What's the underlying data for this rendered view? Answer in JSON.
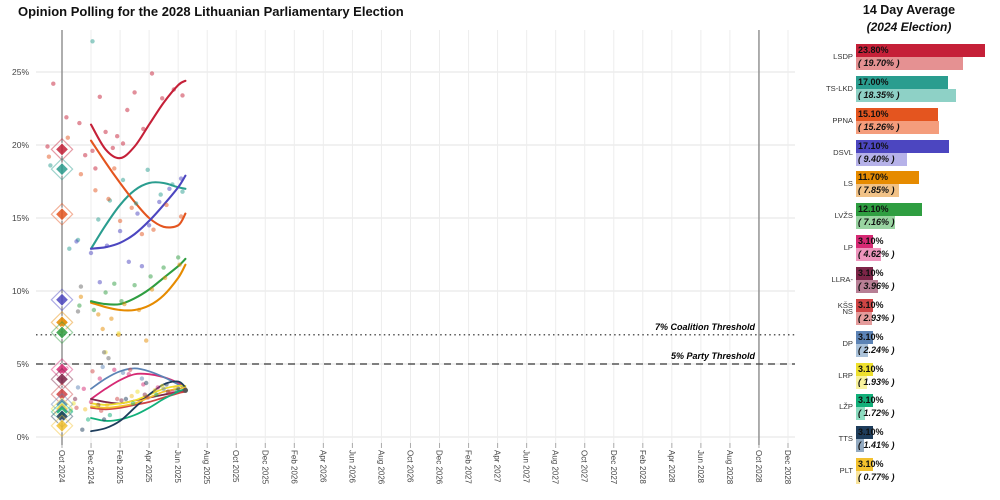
{
  "header": {
    "title": "Opinion Polling for the 2028 Lithuanian Parliamentary Election"
  },
  "side_panel": {
    "title": "14 Day Average",
    "subtitle": "(2024 Election)"
  },
  "chart_data": [
    {
      "type": "scatter",
      "title": "Opinion Polling for the 2028 Lithuanian Parliamentary Election",
      "xlabel": "",
      "ylabel": "",
      "x_tick_labels": [
        "Oct 2024",
        "Dec 2024",
        "Feb 2025",
        "Apr 2025",
        "Jun 2025",
        "Aug 2025",
        "Oct 2025",
        "Dec 2025",
        "Feb 2026",
        "Apr 2026",
        "Jun 2026",
        "Aug 2026",
        "Oct 2026",
        "Dec 2026",
        "Feb 2027",
        "Apr 2027",
        "Jun 2027",
        "Aug 2027",
        "Oct 2027",
        "Dec 2027",
        "Feb 2028",
        "Apr 2028",
        "Jun 2028",
        "Aug 2028",
        "Oct 2028",
        "Dec 2028"
      ],
      "y_tick_labels": [
        "0%",
        "5%",
        "10%",
        "15%",
        "20%",
        "25%"
      ],
      "ylim": [
        0,
        27.9
      ],
      "grid": true,
      "election_date_lines_months": [
        0,
        48
      ],
      "thresholds": [
        {
          "label": "7% Coalition Threshold",
          "value": 7,
          "style": "dotted"
        },
        {
          "label": "5% Party Threshold",
          "value": 5,
          "style": "dashed"
        }
      ],
      "trend_months": [
        2,
        3,
        4,
        5,
        6,
        7,
        8,
        8.5
      ],
      "series": [
        {
          "name": "LSDP",
          "color": "#c52038",
          "light": "#e59192",
          "election_2024": 19.7,
          "avg_14day": 23.8,
          "trend": [
            21.4,
            19.7,
            19.1,
            19.9,
            21.4,
            22.9,
            24.1,
            24.4
          ],
          "points": [
            [
              -1.0,
              19.9
            ],
            [
              -0.6,
              24.2
            ],
            [
              0.3,
              21.9
            ],
            [
              1.2,
              21.5
            ],
            [
              1.6,
              19.3
            ],
            [
              2.1,
              19.6
            ],
            [
              2.3,
              18.4
            ],
            [
              2.6,
              23.3
            ],
            [
              3.0,
              20.9
            ],
            [
              3.5,
              19.8
            ],
            [
              3.8,
              20.6
            ],
            [
              4.2,
              20.1
            ],
            [
              4.5,
              22.4
            ],
            [
              5.0,
              23.6
            ],
            [
              5.6,
              21.1
            ],
            [
              6.2,
              24.9
            ],
            [
              6.9,
              23.2
            ],
            [
              7.7,
              23.8
            ],
            [
              8.3,
              23.4
            ]
          ]
        },
        {
          "name": "TS-LKD",
          "color": "#2a9d8f",
          "light": "#8ed1c6",
          "election_2024": 18.35,
          "avg_14day": 17.0,
          "trend": [
            12.9,
            14.5,
            15.9,
            16.9,
            17.4,
            17.4,
            17.1,
            17.0
          ],
          "points": [
            [
              -0.8,
              18.6
            ],
            [
              0.5,
              12.9
            ],
            [
              1.1,
              13.5
            ],
            [
              2.1,
              27.1
            ],
            [
              2.5,
              14.9
            ],
            [
              3.3,
              16.2
            ],
            [
              4.2,
              17.6
            ],
            [
              5.1,
              16.0
            ],
            [
              5.9,
              18.3
            ],
            [
              6.8,
              16.6
            ],
            [
              7.6,
              17.3
            ],
            [
              8.3,
              16.8
            ]
          ]
        },
        {
          "name": "PPNA",
          "color": "#e4551f",
          "light": "#f49d7c",
          "election_2024": 15.26,
          "avg_14day": 15.1,
          "trend": [
            20.3,
            18.8,
            17.4,
            16.1,
            15.0,
            14.4,
            14.5,
            15.3
          ],
          "points": [
            [
              -0.9,
              19.2
            ],
            [
              0.4,
              20.5
            ],
            [
              1.3,
              18.0
            ],
            [
              2.3,
              16.9
            ],
            [
              3.2,
              16.3
            ],
            [
              3.6,
              18.4
            ],
            [
              4.0,
              14.8
            ],
            [
              4.8,
              15.7
            ],
            [
              5.5,
              13.9
            ],
            [
              6.3,
              14.2
            ],
            [
              7.2,
              15.9
            ],
            [
              8.2,
              15.1
            ]
          ]
        },
        {
          "name": "DSVL",
          "color": "#4c46c0",
          "light": "#b6b2e9",
          "election_2024": 9.4,
          "avg_14day": 17.1,
          "trend": [
            12.9,
            13.0,
            13.3,
            13.9,
            14.8,
            15.9,
            17.1,
            17.9
          ],
          "points": [
            [
              1.0,
              13.4
            ],
            [
              2.0,
              12.6
            ],
            [
              2.6,
              10.6
            ],
            [
              3.1,
              13.1
            ],
            [
              4.0,
              14.1
            ],
            [
              4.6,
              12.0
            ],
            [
              5.2,
              15.3
            ],
            [
              5.5,
              11.7
            ],
            [
              6.0,
              14.5
            ],
            [
              6.7,
              16.1
            ],
            [
              7.4,
              17.0
            ],
            [
              8.2,
              17.7
            ]
          ]
        },
        {
          "name": "LS",
          "color": "#e68b00",
          "light": "#f1c287",
          "election_2024": 7.85,
          "avg_14day": 11.7,
          "trend": [
            9.2,
            8.9,
            8.7,
            8.7,
            9.0,
            9.7,
            10.9,
            11.8
          ],
          "points": [
            [
              0.2,
              7.9
            ],
            [
              1.3,
              9.6
            ],
            [
              2.5,
              8.4
            ],
            [
              2.8,
              7.4
            ],
            [
              3.4,
              8.1
            ],
            [
              3.9,
              7.0
            ],
            [
              4.3,
              9.1
            ],
            [
              5.3,
              8.7
            ],
            [
              5.8,
              6.6
            ],
            [
              6.2,
              10.1
            ],
            [
              7.1,
              10.9
            ],
            [
              8.1,
              11.8
            ]
          ]
        },
        {
          "name": "LVŽS",
          "color": "#2f9e41",
          "light": "#99d4a1",
          "election_2024": 7.16,
          "avg_14day": 12.1,
          "trend": [
            9.3,
            9.1,
            9.1,
            9.5,
            10.1,
            10.9,
            11.7,
            12.2
          ],
          "points": [
            [
              1.2,
              9.0
            ],
            [
              2.2,
              8.7
            ],
            [
              3.0,
              9.9
            ],
            [
              3.6,
              10.5
            ],
            [
              4.1,
              9.3
            ],
            [
              5.0,
              10.4
            ],
            [
              6.1,
              11.0
            ],
            [
              7.0,
              11.6
            ],
            [
              8.0,
              12.3
            ]
          ]
        },
        {
          "name": "LP",
          "color": "#d62a74",
          "light": "#ee95bd",
          "election_2024": 4.62,
          "avg_14day": 3.1,
          "trend": [
            2.6,
            3.3,
            3.9,
            4.3,
            4.3,
            4.1,
            3.7,
            3.3
          ],
          "points": [
            [
              0.3,
              4.7
            ],
            [
              1.5,
              3.3
            ],
            [
              2.0,
              2.4
            ],
            [
              2.6,
              4.0
            ],
            [
              3.6,
              4.6
            ],
            [
              4.6,
              4.3
            ],
            [
              5.6,
              3.6
            ],
            [
              6.6,
              3.4
            ],
            [
              7.6,
              3.1
            ]
          ]
        },
        {
          "name": "LLRA-KŠS",
          "color": "#7d2548",
          "light": "#b77f95",
          "election_2024": 3.96,
          "avg_14day": 3.1,
          "trend": [
            2.6,
            2.4,
            2.3,
            2.5,
            2.7,
            2.9,
            3.1,
            3.2
          ],
          "points": [
            [
              0.9,
              2.6
            ],
            [
              2.5,
              2.2
            ],
            [
              4.1,
              2.5
            ],
            [
              5.7,
              2.9
            ],
            [
              7.3,
              3.1
            ]
          ]
        },
        {
          "name": "NS",
          "color": "#cf4444",
          "light": "#e49b9b",
          "election_2024": 2.93,
          "avg_14day": 3.1,
          "trend": [
            2.0,
            1.9,
            2.0,
            2.2,
            2.4,
            2.7,
            3.0,
            3.1
          ],
          "points": [
            [
              1.0,
              2.0
            ],
            [
              2.1,
              4.5
            ],
            [
              2.7,
              1.8
            ],
            [
              3.8,
              2.6
            ],
            [
              4.7,
              4.6
            ],
            [
              5.9,
              2.7
            ],
            [
              7.4,
              3.0
            ]
          ]
        },
        {
          "name": "DP",
          "color": "#5c83b5",
          "light": "#aac2da",
          "election_2024": 2.24,
          "avg_14day": 3.1,
          "trend": [
            3.3,
            4.0,
            4.5,
            4.7,
            4.5,
            4.1,
            3.6,
            3.3
          ],
          "points": [
            [
              1.1,
              3.4
            ],
            [
              2.8,
              4.8
            ],
            [
              4.2,
              4.4
            ],
            [
              5.5,
              4.0
            ],
            [
              7.0,
              3.3
            ]
          ]
        },
        {
          "name": "LRP",
          "color": "#eee02e",
          "light": "#f8f29c",
          "election_2024": 1.93,
          "avg_14day": 3.1,
          "trend": [
            2.3,
            2.2,
            2.3,
            2.5,
            2.9,
            3.3,
            3.5,
            3.5
          ],
          "points": [
            [
              0.8,
              2.3
            ],
            [
              2.4,
              2.1
            ],
            [
              3.0,
              5.8
            ],
            [
              3.9,
              7.1
            ],
            [
              5.2,
              3.1
            ],
            [
              6.9,
              3.5
            ]
          ]
        },
        {
          "name": "LŽP",
          "color": "#12b07a",
          "light": "#8cdcc0",
          "election_2024": 1.72,
          "avg_14day": 3.1,
          "trend": [
            1.3,
            1.1,
            1.2,
            1.5,
            2.0,
            2.6,
            3.1,
            3.3
          ],
          "points": [
            [
              0.6,
              1.8
            ],
            [
              1.8,
              1.2
            ],
            [
              3.3,
              1.5
            ],
            [
              4.9,
              2.3
            ],
            [
              6.5,
              2.9
            ],
            [
              7.9,
              3.2
            ]
          ]
        },
        {
          "name": "TTS",
          "color": "#1e3d5c",
          "light": "#93aac1",
          "election_2024": 1.41,
          "avg_14day": 3.1,
          "trend": [
            0.4,
            0.6,
            1.1,
            2.0,
            2.9,
            3.6,
            3.8,
            3.4
          ],
          "points": [
            [
              1.4,
              0.5
            ],
            [
              2.9,
              1.2
            ],
            [
              4.4,
              2.6
            ],
            [
              5.8,
              3.7
            ],
            [
              7.2,
              3.6
            ],
            [
              8.0,
              3.3
            ]
          ]
        },
        {
          "name": "PLT",
          "color": "#f3c12e",
          "light": "#f9e49c",
          "election_2024": 0.77,
          "avg_14day": 3.1,
          "trend": [
            2.1,
            2.0,
            2.1,
            2.3,
            2.7,
            3.1,
            3.3,
            3.4
          ],
          "points": [
            [
              1.6,
              1.9
            ],
            [
              3.1,
              2.2
            ],
            [
              4.8,
              2.8
            ],
            [
              6.4,
              3.2
            ],
            [
              7.8,
              3.4
            ]
          ]
        }
      ],
      "other_points": {
        "color": "#8a8a8a",
        "points": [
          [
            1.1,
            8.6
          ],
          [
            1.3,
            10.3
          ],
          [
            2.9,
            5.8
          ],
          [
            3.2,
            5.4
          ],
          [
            8.5,
            3.2
          ]
        ]
      }
    },
    {
      "type": "bar",
      "title": "14 Day Average",
      "subtitle": "(2024 Election)",
      "orientation": "horizontal",
      "categories": [
        "LSDP",
        "TS-LKD",
        "PPNA",
        "DSVL",
        "LS",
        "LVŽS",
        "LP",
        "LLRA-KŠS",
        "NS",
        "DP",
        "LRP",
        "LŽP",
        "TTS",
        "PLT"
      ],
      "series": [
        {
          "name": "14 Day Average",
          "values": [
            23.8,
            17.0,
            15.1,
            17.1,
            11.7,
            12.1,
            3.1,
            3.1,
            3.1,
            3.1,
            3.1,
            3.1,
            3.1,
            3.1
          ]
        },
        {
          "name": "2024 Election",
          "values": [
            19.7,
            18.35,
            15.26,
            9.4,
            7.85,
            7.16,
            4.62,
            3.96,
            2.93,
            2.24,
            1.93,
            1.72,
            1.41,
            0.77
          ]
        }
      ]
    }
  ]
}
